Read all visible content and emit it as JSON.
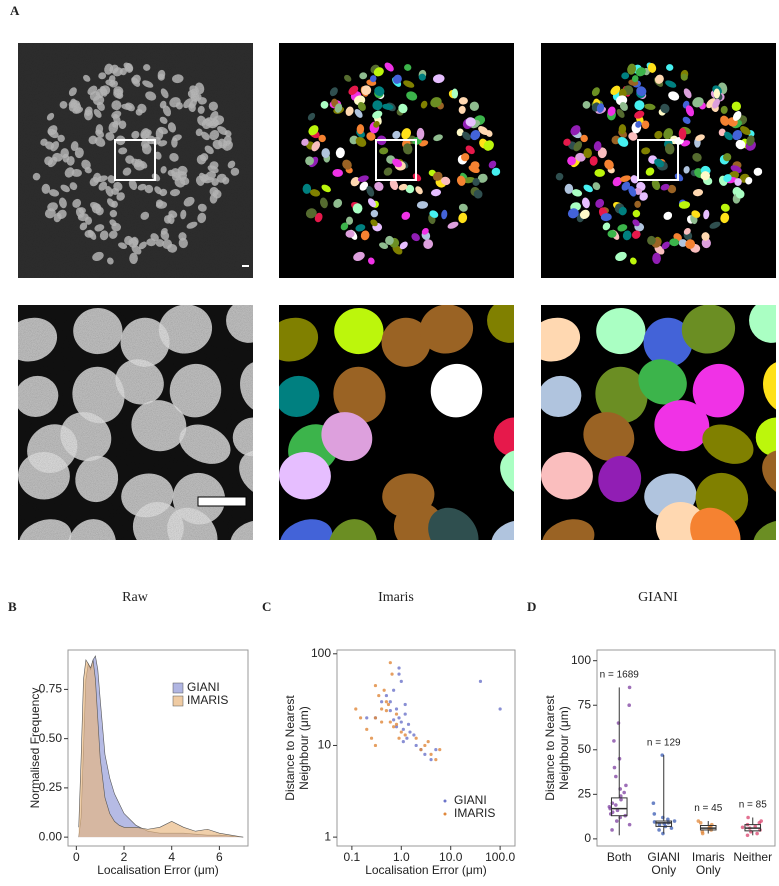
{
  "figure": {
    "panel_labels": [
      "A"
    ],
    "image_captions": [
      "Raw",
      "Imaris",
      "GIANI"
    ]
  },
  "chart_data": [
    {
      "panel": "B",
      "type": "area",
      "xlabel": "Localisation Error (μm)",
      "ylabel": [
        "Normalised Frequency"
      ],
      "x": [
        0.1,
        0.2,
        0.3,
        0.4,
        0.5,
        0.6,
        0.7,
        0.8,
        0.9,
        1.0,
        1.2,
        1.4,
        1.6,
        1.8,
        2.0,
        2.5,
        3.0,
        3.5,
        4.0,
        4.5,
        5.0,
        5.5,
        6.0,
        6.5,
        7.0
      ],
      "xlim": [
        -0.35,
        7.2
      ],
      "xticks": [
        0,
        2,
        4,
        6
      ],
      "ylim": [
        -0.045,
        0.95
      ],
      "yticks": [
        {
          "value": 0,
          "label": "0.00"
        },
        0.25,
        {
          "value": 0.5,
          "label": "0.50"
        },
        0.75
      ],
      "legend": "upper right",
      "series": [
        {
          "name": "GIANI",
          "color": "#8f96d6",
          "values": [
            0,
            0.1,
            0.45,
            0.8,
            0.88,
            0.85,
            0.9,
            0.92,
            0.85,
            0.7,
            0.42,
            0.3,
            0.22,
            0.17,
            0.12,
            0.06,
            0.03,
            0.02,
            0.02,
            0.02,
            0.015,
            0.01,
            0.01,
            0.005,
            0
          ]
        },
        {
          "name": "IMARIS",
          "color": "#e8b57c",
          "values": [
            0.05,
            0.4,
            0.8,
            0.9,
            0.88,
            0.86,
            0.9,
            0.8,
            0.6,
            0.4,
            0.2,
            0.12,
            0.08,
            0.06,
            0.05,
            0.05,
            0.04,
            0.05,
            0.08,
            0.05,
            0.03,
            0.04,
            0.02,
            0.01,
            0
          ]
        }
      ]
    },
    {
      "panel": "C",
      "type": "scatter",
      "xlabel": "Localisation Error (μm)",
      "ylabel": [
        "Distance to Nearest",
        "Neighbour (μm)"
      ],
      "xscale": "log",
      "yscale": "log",
      "xlim": [
        0.05,
        200
      ],
      "xticks": [
        0.1,
        {
          "value": 1,
          "label": "1.0"
        },
        {
          "value": 10,
          "label": "10.0"
        },
        {
          "value": 100,
          "label": "100.0"
        }
      ],
      "ylim": [
        0.8,
        110
      ],
      "yticks": [
        1,
        10,
        100
      ],
      "legend": "lower right",
      "series": [
        {
          "name": "GIANI",
          "color": "#6b73c9",
          "x": [
            0.6,
            0.8,
            0.9,
            1.0,
            1.1,
            1.2,
            0.7,
            0.5,
            1.3,
            1.5,
            2,
            3,
            4,
            1,
            0.9,
            0.8,
            1.2,
            0.6,
            0.4,
            0.3,
            5,
            40,
            100,
            1.8,
            2.5,
            0.9,
            1.1,
            0.7,
            0.2,
            1.4
          ],
          "values": [
            30,
            25,
            20,
            18,
            15,
            22,
            40,
            35,
            12,
            14,
            10,
            8,
            7,
            50,
            60,
            16,
            28,
            24,
            30,
            20,
            9,
            50,
            25,
            13,
            9,
            70,
            11,
            19,
            20,
            17
          ]
        },
        {
          "name": "IMARIS",
          "color": "#e0873a",
          "x": [
            0.3,
            0.4,
            0.5,
            0.2,
            0.6,
            0.8,
            0.15,
            0.25,
            0.35,
            1.0,
            0.45,
            3,
            4,
            5,
            2.5,
            0.7,
            0.55,
            0.9,
            0.12,
            0.3,
            3.5,
            6,
            0.65,
            0.4,
            1.2,
            0.5,
            0.8,
            0.3,
            2,
            0.6
          ],
          "values": [
            20,
            25,
            30,
            15,
            18,
            22,
            20,
            12,
            35,
            14,
            40,
            10,
            8,
            7,
            9,
            16,
            28,
            12,
            25,
            45,
            11,
            9,
            60,
            18,
            13,
            24,
            17,
            10,
            12,
            80
          ]
        }
      ]
    },
    {
      "panel": "D",
      "type": "box",
      "ylabel": [
        "Distance to Nearest",
        "Neighbour (μm)"
      ],
      "categories": [
        "Both",
        "GIANI Only",
        "Imaris Only",
        "Neither"
      ],
      "colors": [
        "#7e3fa0",
        "#3a5bb3",
        "#e0873a",
        "#d9436e"
      ],
      "annotations": [
        "n = 1689",
        "n = 129",
        "n = 45",
        "n = 85"
      ],
      "ylim": [
        -4,
        106
      ],
      "yticks": [
        0,
        25,
        50,
        75,
        100
      ],
      "boxes": [
        {
          "whisker_low": 2,
          "q1": 13,
          "median": 17,
          "q3": 23,
          "whisker_high": 85
        },
        {
          "whisker_low": 3,
          "q1": 7,
          "median": 9,
          "q3": 10,
          "whisker_high": 47
        },
        {
          "whisker_low": 3,
          "q1": 5,
          "median": 6,
          "q3": 7.5,
          "whisker_high": 10
        },
        {
          "whisker_low": 2,
          "q1": 4.5,
          "median": 6,
          "q3": 8,
          "whisker_high": 12
        }
      ],
      "points": [
        [
          5,
          8,
          10,
          12,
          13,
          14,
          15,
          16,
          17,
          18,
          19,
          20,
          22,
          24,
          26,
          28,
          30,
          35,
          40,
          45,
          55,
          65,
          75,
          85
        ],
        [
          3,
          5,
          6,
          7,
          8,
          8.5,
          9,
          9.5,
          10,
          11,
          12,
          14,
          20,
          47
        ],
        [
          3,
          4,
          5,
          5.5,
          6,
          6.5,
          7,
          8,
          9,
          10
        ],
        [
          2,
          3,
          4,
          5,
          6,
          6.5,
          7,
          8,
          9,
          10,
          12
        ]
      ]
    }
  ]
}
